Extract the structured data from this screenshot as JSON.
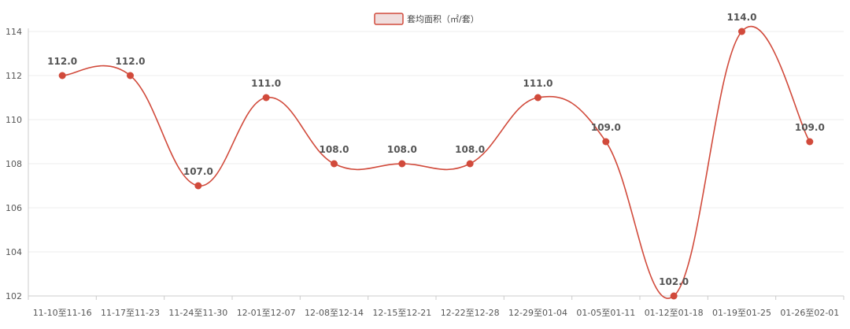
{
  "chart_data": {
    "type": "line",
    "categories": [
      "11-10至11-16",
      "11-17至11-23",
      "11-24至11-30",
      "12-01至12-07",
      "12-08至12-14",
      "12-15至12-21",
      "12-22至12-28",
      "12-29至01-04",
      "01-05至01-11",
      "01-12至01-18",
      "01-19至01-25",
      "01-26至02-01"
    ],
    "series": [
      {
        "name": "套均面积（㎡/套）",
        "values": [
          112.0,
          112.0,
          107.0,
          111.0,
          108.0,
          108.0,
          108.0,
          111.0,
          109.0,
          102.0,
          114.0,
          109.0
        ],
        "labels": [
          "112.0",
          "112.0",
          "107.0",
          "111.0",
          "108.0",
          "108.0",
          "108.0",
          "111.0",
          "109.0",
          "102.0",
          "114.0",
          "109.0"
        ],
        "color": "#d14a3b"
      }
    ],
    "yticks": [
      "102",
      "104",
      "106",
      "108",
      "110",
      "112",
      "114"
    ],
    "ylim": [
      102,
      114
    ],
    "grid": true,
    "legend_position": "top-center",
    "legend_fill": "#f0dede"
  }
}
